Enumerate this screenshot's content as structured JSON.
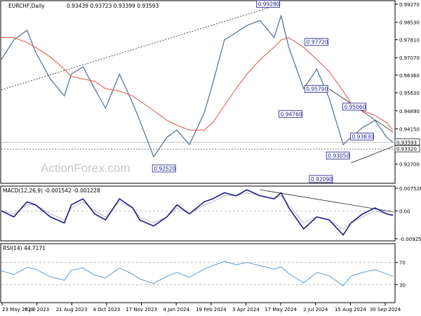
{
  "header": {
    "symbol": "EURCHF,Daily",
    "ohlc": "0.93439 0.93723 0.93399 0.93593"
  },
  "watermark": "ActionForex.com",
  "colors": {
    "price": "#4d6f8a",
    "ma": "#e0504c",
    "trend": "#222222",
    "macd": "#1c1c8a",
    "signal": "#b8b8b8",
    "rsi": "#5b9ad1",
    "box": "#1c1c8a",
    "current": "#000000"
  },
  "price_axis": [
    "0.92700",
    "0.93320",
    "0.93593",
    "0.94150",
    "0.94890",
    "0.95630",
    "0.96360",
    "0.97070",
    "0.97810",
    "0.98530",
    "0.99270"
  ],
  "macd_axis": [
    "0.007526",
    "0.00",
    "-0.009252"
  ],
  "rsi_axis": [
    "70",
    "30"
  ],
  "x_labels": [
    "23 May 2023",
    "6 Jul 2023",
    "21 Aug 2023",
    "4 Oct 2023",
    "17 Nov 2023",
    "4 Jan 2024",
    "19 Feb 2024",
    "3 Apr 2024",
    "17 May 2024",
    "2 Jul 2024",
    "15 Aug 2024",
    "30 Sep 2024"
  ],
  "annotations": [
    "0.99280",
    "0.97720",
    "0.95790",
    "0.95060",
    "0.94760",
    "0.93830",
    "0.93050",
    "0.92520",
    "0.92090"
  ],
  "macd_title": "MACD(12,26,9) -0.001542 -0.001228",
  "rsi_title": "RSI(14) 44.7171",
  "chart_data": {
    "type": "line",
    "x": [
      "2023-05-23",
      "2023-06-08",
      "2023-06-25",
      "2023-07-06",
      "2023-07-25",
      "2023-08-12",
      "2023-08-21",
      "2023-09-05",
      "2023-09-20",
      "2023-10-04",
      "2023-10-22",
      "2023-11-08",
      "2023-11-17",
      "2023-12-05",
      "2023-12-22",
      "2024-01-04",
      "2024-01-20",
      "2024-02-08",
      "2024-02-19",
      "2024-03-05",
      "2024-03-20",
      "2024-04-03",
      "2024-04-20",
      "2024-05-08",
      "2024-05-17",
      "2024-05-27",
      "2024-06-15",
      "2024-07-02",
      "2024-07-18",
      "2024-08-05",
      "2024-08-15",
      "2024-08-30",
      "2024-09-15",
      "2024-09-30",
      "2024-10-08"
    ],
    "series": [
      {
        "key": "close",
        "values": [
          0.97,
          0.978,
          0.982,
          0.973,
          0.962,
          0.955,
          0.964,
          0.967,
          0.958,
          0.95,
          0.964,
          0.952,
          0.945,
          0.93,
          0.938,
          0.941,
          0.935,
          0.948,
          0.96,
          0.978,
          0.981,
          0.984,
          0.986,
          0.979,
          0.988,
          0.975,
          0.958,
          0.966,
          0.954,
          0.935,
          0.938,
          0.942,
          0.945,
          0.938,
          0.936
        ]
      },
      {
        "key": "ma",
        "values": [
          0.979,
          0.979,
          0.977,
          0.975,
          0.971,
          0.966,
          0.963,
          0.962,
          0.961,
          0.958,
          0.957,
          0.955,
          0.953,
          0.949,
          0.945,
          0.943,
          0.941,
          0.941,
          0.944,
          0.951,
          0.958,
          0.964,
          0.97,
          0.975,
          0.978,
          0.979,
          0.975,
          0.97,
          0.965,
          0.957,
          0.952,
          0.949,
          0.947,
          0.944,
          0.941
        ]
      },
      {
        "key": "macd",
        "values": [
          0.0,
          -0.002,
          0.003,
          0.002,
          -0.002,
          -0.004,
          0.002,
          0.004,
          -0.001,
          -0.003,
          0.004,
          0.001,
          -0.003,
          -0.005,
          -0.002,
          0.002,
          -0.001,
          0.003,
          0.004,
          0.006,
          0.005,
          0.007,
          0.005,
          0.004,
          0.006,
          0.001,
          -0.006,
          -0.002,
          -0.003,
          -0.008,
          -0.004,
          -0.001,
          0.001,
          -0.001,
          -0.0015
        ]
      },
      {
        "key": "signal",
        "values": [
          0.0,
          -0.001,
          0.002,
          0.002,
          -0.001,
          -0.003,
          0.001,
          0.003,
          0.0,
          -0.002,
          0.003,
          0.001,
          -0.002,
          -0.004,
          -0.002,
          0.001,
          -0.001,
          0.002,
          0.003,
          0.005,
          0.005,
          0.006,
          0.005,
          0.004,
          0.005,
          0.002,
          -0.004,
          -0.002,
          -0.003,
          -0.006,
          -0.004,
          -0.002,
          0.0,
          -0.001,
          -0.0012
        ]
      },
      {
        "key": "rsi",
        "values": [
          55,
          48,
          61,
          58,
          44,
          38,
          56,
          60,
          47,
          42,
          60,
          49,
          40,
          32,
          45,
          52,
          43,
          58,
          64,
          72,
          66,
          70,
          64,
          58,
          62,
          50,
          33,
          52,
          46,
          28,
          45,
          52,
          57,
          49,
          44.7
        ]
      }
    ],
    "ylim_price": [
      0.9197,
      0.9927
    ],
    "ylim_macd": [
      -0.009252,
      0.007526
    ],
    "ylim_rsi": [
      0,
      100
    ],
    "trendlines": [
      {
        "from": [
          "2023-05-23",
          0.9575
        ],
        "to": [
          "2024-05-17",
          0.9928
        ]
      },
      {
        "from": [
          "2024-07-18",
          0.9579
        ],
        "to": [
          "2024-10-08",
          0.9402
        ]
      },
      {
        "from": [
          "2024-08-15",
          0.9275
        ],
        "to": [
          "2024-10-08",
          0.9342
        ]
      }
    ],
    "current_price": 0.93593,
    "reference_price": 0.9332
  }
}
